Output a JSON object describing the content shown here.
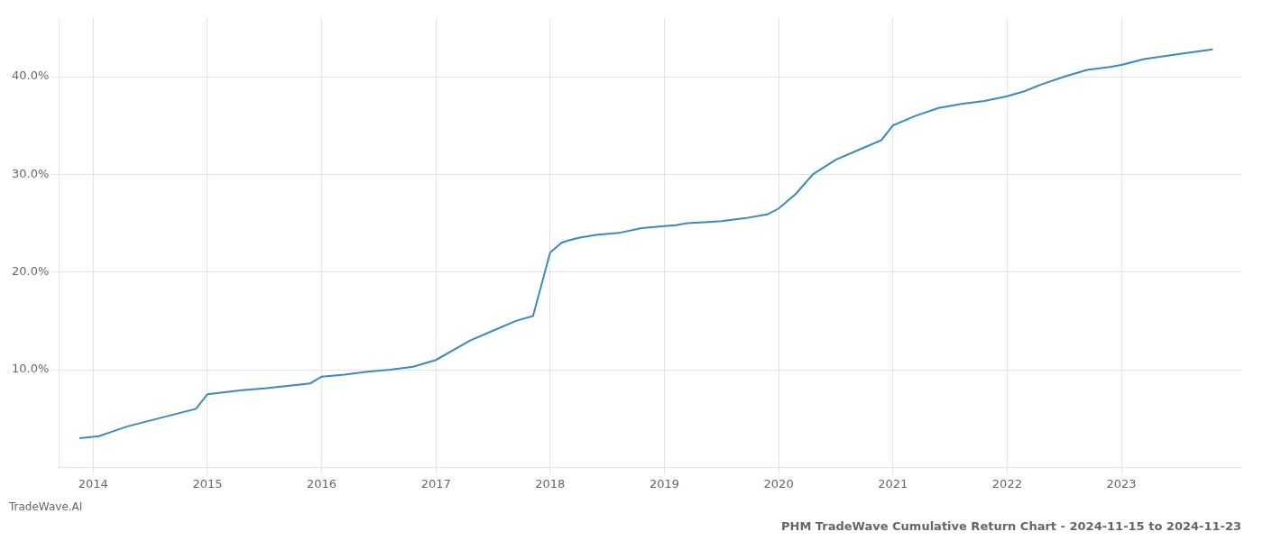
{
  "chart_data": {
    "type": "line",
    "title": "PHM TradeWave Cumulative Return Chart - 2024-11-15 to 2024-11-23",
    "annotations": [
      {
        "text": "TradeWave.AI"
      }
    ],
    "color": "#3a8abf",
    "x": [
      2013.88,
      2014.05,
      2014.15,
      2014.3,
      2014.5,
      2014.7,
      2014.9,
      2015.0,
      2015.15,
      2015.3,
      2015.5,
      2015.7,
      2015.9,
      2016.0,
      2016.2,
      2016.4,
      2016.6,
      2016.8,
      2017.0,
      2017.15,
      2017.3,
      2017.5,
      2017.7,
      2017.85,
      2018.0,
      2018.1,
      2018.15,
      2018.25,
      2018.4,
      2018.6,
      2018.8,
      2019.0,
      2019.1,
      2019.2,
      2019.35,
      2019.5,
      2019.7,
      2019.9,
      2020.0,
      2020.15,
      2020.3,
      2020.5,
      2020.7,
      2020.9,
      2021.0,
      2021.2,
      2021.4,
      2021.6,
      2021.8,
      2022.0,
      2022.15,
      2022.3,
      2022.5,
      2022.7,
      2022.9,
      2023.0,
      2023.2,
      2023.5,
      2023.8
    ],
    "values": [
      3.0,
      3.2,
      3.6,
      4.2,
      4.8,
      5.4,
      6.0,
      7.5,
      7.7,
      7.9,
      8.1,
      8.35,
      8.6,
      9.3,
      9.5,
      9.8,
      10.0,
      10.3,
      11.0,
      12.0,
      13.0,
      14.0,
      15.0,
      15.5,
      22.0,
      23.0,
      23.2,
      23.5,
      23.8,
      24.0,
      24.5,
      24.7,
      24.8,
      25.0,
      25.1,
      25.2,
      25.5,
      25.9,
      26.5,
      28.0,
      30.0,
      31.5,
      32.5,
      33.5,
      35.0,
      36.0,
      36.8,
      37.2,
      37.5,
      38.0,
      38.5,
      39.2,
      40.0,
      40.7,
      41.0,
      41.2,
      41.8,
      42.3,
      42.8
    ],
    "xlim": [
      2013.7,
      2024.05
    ],
    "xticks": [
      2014,
      2015,
      2016,
      2017,
      2018,
      2019,
      2020,
      2021,
      2022,
      2023
    ],
    "ylim": [
      0,
      46
    ],
    "yticks": [
      {
        "value": 10.0,
        "label": "10.0%"
      },
      {
        "value": 20.0,
        "label": "20.0%"
      },
      {
        "value": 30.0,
        "label": "30.0%"
      },
      {
        "value": 40.0,
        "label": "40.0%"
      }
    ],
    "grid": true
  }
}
